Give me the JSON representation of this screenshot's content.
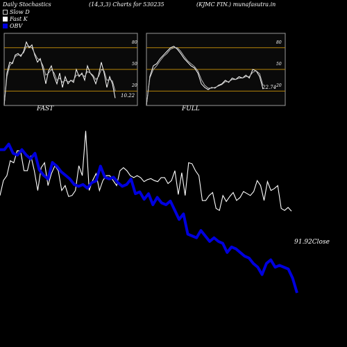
{
  "header": {
    "title": "Daily Stochastics",
    "params": "(14,3,3) Charts for 530235",
    "company": "(KJMC FIN.) munafasutra.in"
  },
  "legend": {
    "slow_d": "Slow  D",
    "fast_k": "Fast K",
    "obv": "OBV"
  },
  "panels": {
    "fast": {
      "label": "FAST",
      "value": "10.22",
      "ticks": [
        "80",
        "50",
        "20"
      ]
    },
    "full": {
      "label": "FULL",
      "value": "22.74",
      "ticks": [
        "80",
        "50",
        "20"
      ]
    }
  },
  "colors": {
    "background": "#000000",
    "panel": "#0a0a0a",
    "panel_border": "#9a9a9a",
    "level_line": "#b8860b",
    "price": "#ffffff",
    "obv": "#0000dd"
  },
  "chart_data": [
    {
      "type": "line",
      "panel": "FAST",
      "ylim": [
        0,
        100
      ],
      "levels": [
        80,
        50,
        20
      ],
      "series": [
        {
          "name": "Fast K",
          "values": [
            0,
            45,
            60,
            58,
            70,
            72,
            68,
            75,
            88,
            80,
            84,
            70,
            60,
            65,
            50,
            30,
            48,
            55,
            40,
            30,
            45,
            25,
            40,
            30,
            35,
            32,
            50,
            40,
            45,
            35,
            55,
            45,
            40,
            30,
            42,
            60,
            45,
            25,
            40,
            30,
            10.22
          ]
        },
        {
          "name": "Slow  D",
          "values": [
            0,
            40,
            55,
            60,
            68,
            70,
            70,
            73,
            82,
            82,
            80,
            72,
            65,
            63,
            55,
            42,
            45,
            50,
            45,
            35,
            38,
            32,
            35,
            33,
            34,
            35,
            42,
            42,
            43,
            40,
            47,
            45,
            42,
            36,
            40,
            50,
            48,
            35,
            36,
            34,
            20
          ]
        }
      ]
    },
    {
      "type": "line",
      "panel": "FULL",
      "ylim": [
        0,
        100
      ],
      "levels": [
        80,
        50,
        20
      ],
      "series": [
        {
          "name": "Fast K",
          "values": [
            0,
            40,
            55,
            58,
            65,
            70,
            75,
            80,
            82,
            78,
            72,
            65,
            60,
            55,
            52,
            45,
            30,
            25,
            22,
            25,
            24,
            28,
            30,
            35,
            32,
            38,
            36,
            40,
            38,
            42,
            38,
            50,
            48,
            40,
            22.74
          ]
        },
        {
          "name": "Slow  D",
          "values": [
            0,
            38,
            50,
            55,
            62,
            68,
            72,
            78,
            80,
            80,
            75,
            68,
            62,
            58,
            54,
            48,
            36,
            28,
            24,
            24,
            25,
            27,
            29,
            33,
            33,
            36,
            36,
            38,
            38,
            40,
            40,
            46,
            48,
            44,
            28
          ]
        }
      ]
    },
    {
      "type": "line",
      "panel": "main",
      "value_label": "91.92Close",
      "series": [
        {
          "name": "Close",
          "values": [
            93.5,
            95,
            95.5,
            97,
            96.8,
            98,
            98,
            96,
            96,
            97.5,
            96,
            94,
            96.3,
            96.8,
            94.5,
            95.7,
            96.5,
            96,
            94,
            94.5,
            93.4,
            93.5,
            94,
            96.5,
            95.5,
            100,
            94,
            95,
            95.7,
            94,
            95,
            95.5,
            95.5,
            95,
            94.5,
            96,
            96.3,
            96,
            95.5,
            95.3,
            95.5,
            95.3,
            94.9,
            95.1,
            95.2,
            95,
            94.9,
            95.3,
            95.3,
            94.7,
            95,
            96,
            93.6,
            95.8,
            93.5,
            96.8,
            96.7,
            96,
            95.5,
            93,
            93,
            93.5,
            93.8,
            92.2,
            92,
            93.5,
            92.9,
            93.4,
            93.8,
            93,
            93.3,
            93.9,
            93.7,
            93.5,
            93.9,
            95,
            94.5,
            93,
            94.9,
            94,
            94.2,
            94.5,
            92.2,
            92,
            92.3,
            91.92
          ]
        },
        {
          "name": "OBV",
          "values": [
            800,
            800,
            830,
            780,
            770,
            800,
            770,
            750,
            780,
            690,
            660,
            640,
            730,
            710,
            680,
            660,
            640,
            610,
            600,
            610,
            590,
            620,
            630,
            710,
            650,
            640,
            650,
            620,
            600,
            610,
            640,
            560,
            570,
            530,
            560,
            500,
            540,
            510,
            500,
            520,
            470,
            420,
            450,
            340,
            330,
            320,
            360,
            330,
            300,
            320,
            300,
            290,
            240,
            270,
            260,
            240,
            220,
            210,
            180,
            160,
            120,
            180,
            200,
            160,
            170,
            160,
            150,
            100,
            20
          ]
        }
      ]
    }
  ]
}
